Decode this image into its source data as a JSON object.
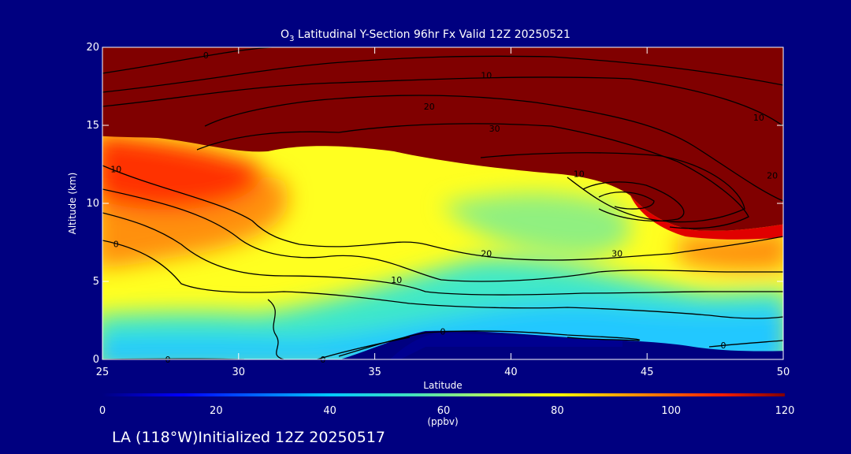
{
  "chart_data": {
    "type": "contour",
    "title_main": "O",
    "title_sub": "3",
    "title_rest": " Latitudinal Y-Section 96hr  Fx Valid 12Z 20250521",
    "xlabel": "Latitude",
    "ylabel": "Altitude (km)",
    "x_ticks": [
      25,
      30,
      35,
      40,
      45,
      50
    ],
    "y_ticks": [
      0,
      5,
      10,
      15,
      20
    ],
    "xlim": [
      25,
      50
    ],
    "ylim": [
      0,
      20
    ],
    "colorbar": {
      "unit": "(ppbv)",
      "ticks": [
        0,
        20,
        40,
        60,
        80,
        100,
        120
      ],
      "range": [
        0,
        120
      ]
    },
    "contour_labels": [
      {
        "text": "0",
        "lat": 28.8,
        "alt": 19.5
      },
      {
        "text": "10",
        "lat": 39.1,
        "alt": 18.2
      },
      {
        "text": "20",
        "lat": 37.0,
        "alt": 16.2
      },
      {
        "text": "30",
        "lat": 39.4,
        "alt": 14.8
      },
      {
        "text": "10",
        "lat": 49.1,
        "alt": 15.5
      },
      {
        "text": "20",
        "lat": 49.6,
        "alt": 11.8
      },
      {
        "text": "10",
        "lat": 25.5,
        "alt": 12.2
      },
      {
        "text": "10",
        "lat": 42.5,
        "alt": 11.9
      },
      {
        "text": "0",
        "lat": 25.5,
        "alt": 7.4
      },
      {
        "text": "20",
        "lat": 39.1,
        "alt": 6.8
      },
      {
        "text": "30",
        "lat": 43.9,
        "alt": 6.8
      },
      {
        "text": "10",
        "lat": 35.8,
        "alt": 5.1
      },
      {
        "text": "0",
        "lat": 37.5,
        "alt": 1.8
      },
      {
        "text": "0",
        "lat": 27.4,
        "alt": 0.0
      },
      {
        "text": "0",
        "lat": 33.1,
        "alt": 0.0
      },
      {
        "text": "0",
        "lat": 47.8,
        "alt": 0.9
      }
    ]
  },
  "footer": "LA (118°W)Initialized 12Z 20250517"
}
